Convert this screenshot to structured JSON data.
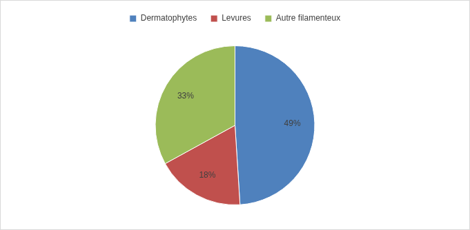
{
  "chart_data": {
    "type": "pie",
    "categories": [
      "Dermatophytes",
      "Levures",
      "Autre filamenteux"
    ],
    "values": [
      49,
      18,
      33
    ],
    "value_labels": [
      "49%",
      "18%",
      "33%"
    ],
    "colors": [
      "#4f81bd",
      "#c0504d",
      "#9bbb59"
    ],
    "legend": "top",
    "data_labels": true
  }
}
